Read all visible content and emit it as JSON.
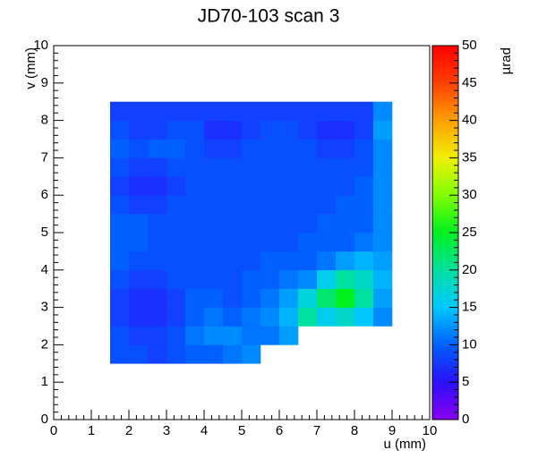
{
  "chart_data": {
    "type": "heatmap",
    "title": "JD70-103 scan 3",
    "x_label": "u (mm)",
    "y_label": "v (mm)",
    "z_label": "µrad",
    "xlim": [
      0,
      10
    ],
    "ylim": [
      0,
      10
    ],
    "zlim": [
      0,
      50
    ],
    "xticks": [
      0,
      1,
      2,
      3,
      4,
      5,
      6,
      7,
      8,
      9,
      10
    ],
    "yticks": [
      0,
      1,
      2,
      3,
      4,
      5,
      6,
      7,
      8,
      9,
      10
    ],
    "zticks": [
      0,
      5,
      10,
      15,
      20,
      25,
      30,
      35,
      40,
      45,
      50
    ],
    "x_edges": [
      1.5,
      2,
      2.5,
      3,
      3.5,
      4,
      4.5,
      5,
      5.5,
      6,
      6.5,
      7,
      7.5,
      8,
      8.5,
      9
    ],
    "y_edges": [
      1.5,
      2,
      2.5,
      3,
      3.5,
      4,
      4.5,
      5,
      5.5,
      6,
      6.5,
      7,
      7.5,
      8,
      8.5
    ],
    "z": [
      [
        9,
        9,
        8,
        9,
        10,
        10,
        11,
        12,
        null,
        null,
        null,
        null,
        null,
        null,
        null
      ],
      [
        9,
        8,
        8,
        9,
        11,
        12,
        12,
        11,
        11,
        13,
        null,
        null,
        null,
        null,
        null
      ],
      [
        8,
        7,
        7,
        8,
        10,
        11,
        10,
        11,
        12,
        14,
        20,
        16,
        18,
        15,
        12
      ],
      [
        8,
        7,
        7,
        8,
        10,
        10,
        9,
        10,
        11,
        13,
        17,
        22,
        25,
        20,
        13
      ],
      [
        9,
        8,
        8,
        9,
        9,
        9,
        9,
        10,
        10,
        11,
        12,
        16,
        20,
        18,
        14
      ],
      [
        10,
        9,
        9,
        9,
        9,
        9,
        9,
        9,
        10,
        10,
        10,
        11,
        13,
        14,
        13
      ],
      [
        10,
        10,
        9,
        9,
        9,
        9,
        9,
        9,
        9,
        9,
        10,
        10,
        10,
        11,
        12
      ],
      [
        10,
        10,
        9,
        9,
        9,
        9,
        9,
        9,
        9,
        9,
        9,
        10,
        10,
        10,
        12
      ],
      [
        9,
        8,
        8,
        9,
        9,
        9,
        9,
        9,
        9,
        9,
        9,
        9,
        10,
        10,
        12
      ],
      [
        8,
        7,
        7,
        8,
        9,
        9,
        9,
        9,
        9,
        9,
        9,
        9,
        9,
        10,
        12
      ],
      [
        9,
        8,
        8,
        9,
        9,
        9,
        9,
        9,
        9,
        9,
        9,
        9,
        9,
        9,
        12
      ],
      [
        10,
        9,
        10,
        10,
        9,
        8,
        8,
        9,
        9,
        9,
        9,
        8,
        8,
        9,
        12
      ],
      [
        9,
        8,
        8,
        9,
        9,
        7,
        7,
        8,
        9,
        9,
        8,
        7,
        7,
        8,
        13
      ],
      [
        8,
        8,
        8,
        8,
        8,
        8,
        8,
        8,
        8,
        8,
        8,
        8,
        8,
        8,
        12
      ]
    ]
  }
}
